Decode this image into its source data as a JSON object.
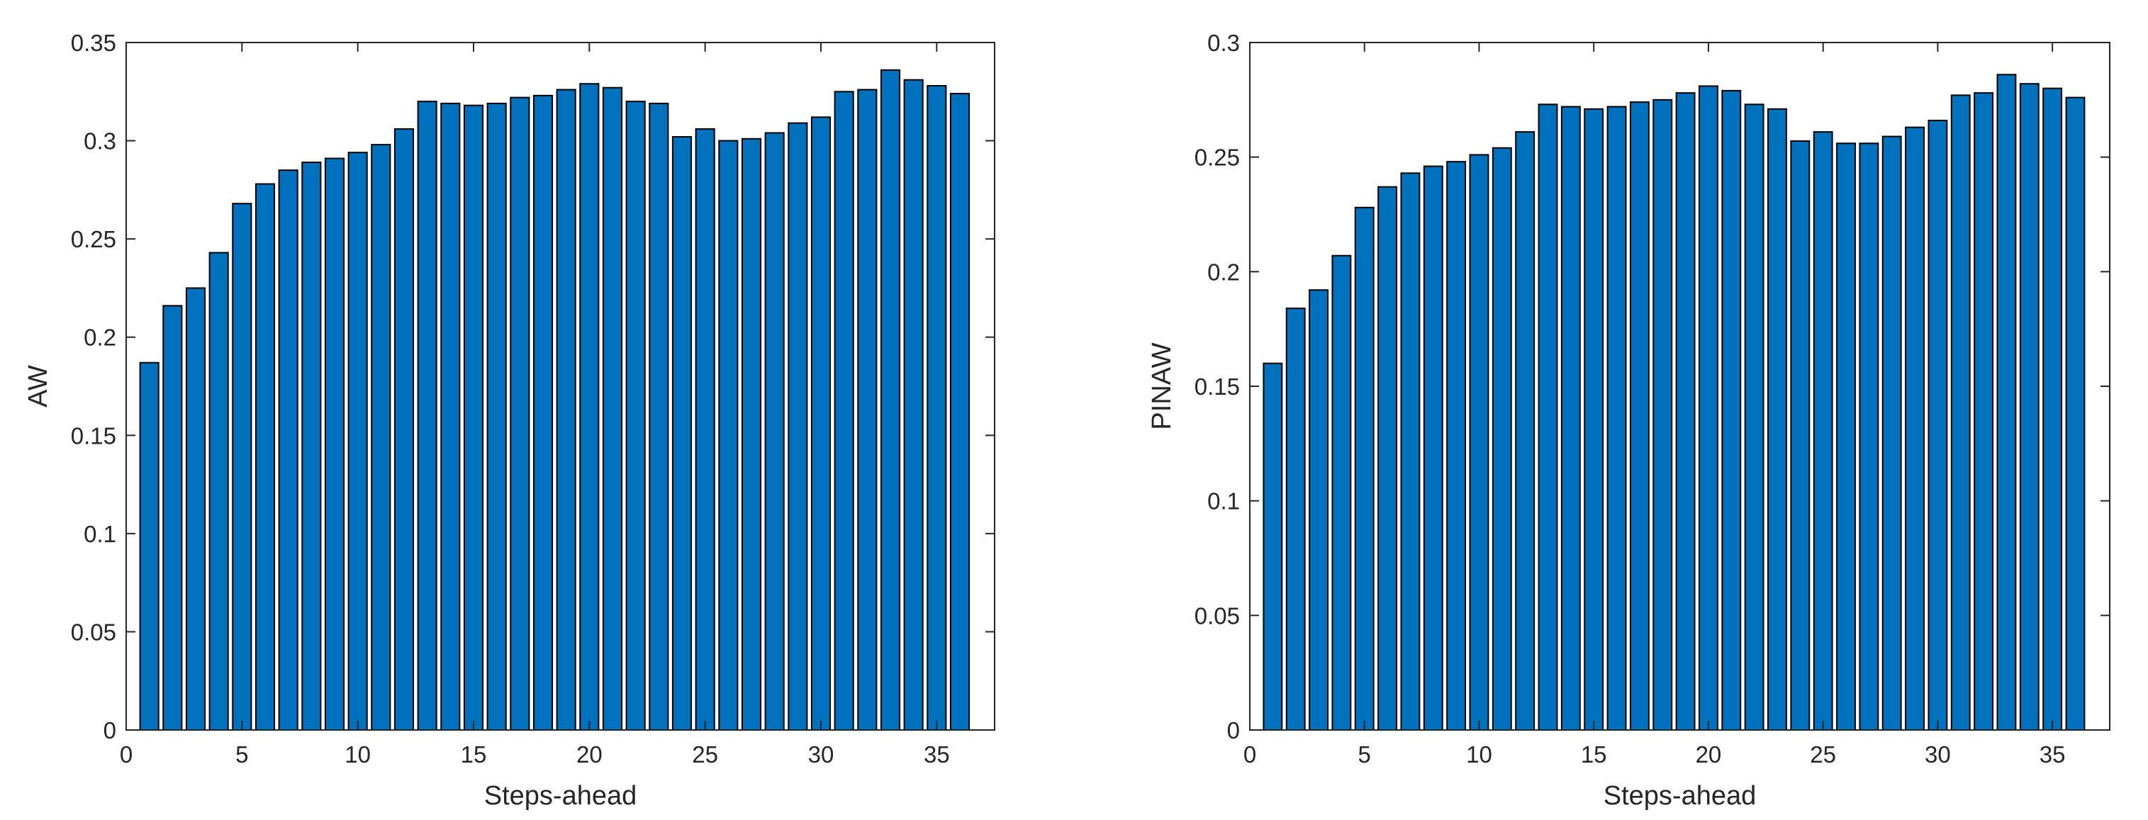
{
  "colors": {
    "bar_fill": "#0072BD",
    "bar_edge": "#000000",
    "axis": "#262626",
    "background": "#ffffff"
  },
  "chart_data": [
    {
      "type": "bar",
      "title": "",
      "xlabel": "Steps-ahead",
      "ylabel": "AW",
      "xlim": [
        0,
        37.5
      ],
      "ylim": [
        0,
        0.35
      ],
      "xticks": [
        0,
        5,
        10,
        15,
        20,
        25,
        30,
        35
      ],
      "xtick_labels": [
        "0",
        "5",
        "10",
        "15",
        "20",
        "25",
        "30",
        "35"
      ],
      "yticks": [
        0,
        0.05,
        0.1,
        0.15,
        0.2,
        0.25,
        0.3,
        0.35
      ],
      "ytick_labels": [
        "0",
        "0.05",
        "0.1",
        "0.15",
        "0.2",
        "0.25",
        "0.3",
        "0.35"
      ],
      "grid": false,
      "x": [
        1,
        2,
        3,
        4,
        5,
        6,
        7,
        8,
        9,
        10,
        11,
        12,
        13,
        14,
        15,
        16,
        17,
        18,
        19,
        20,
        21,
        22,
        23,
        24,
        25,
        26,
        27,
        28,
        29,
        30,
        31,
        32,
        33,
        34,
        35,
        36
      ],
      "values": [
        0.187,
        0.216,
        0.225,
        0.243,
        0.268,
        0.278,
        0.285,
        0.289,
        0.291,
        0.294,
        0.298,
        0.306,
        0.32,
        0.319,
        0.318,
        0.319,
        0.322,
        0.323,
        0.326,
        0.329,
        0.327,
        0.32,
        0.319,
        0.302,
        0.306,
        0.3,
        0.301,
        0.304,
        0.309,
        0.312,
        0.325,
        0.326,
        0.336,
        0.331,
        0.328,
        0.324
      ]
    },
    {
      "type": "bar",
      "title": "",
      "xlabel": "Steps-ahead",
      "ylabel": "PINAW",
      "xlim": [
        0,
        37.5
      ],
      "ylim": [
        0,
        0.3
      ],
      "xticks": [
        0,
        5,
        10,
        15,
        20,
        25,
        30,
        35
      ],
      "xtick_labels": [
        "0",
        "5",
        "10",
        "15",
        "20",
        "25",
        "30",
        "35"
      ],
      "yticks": [
        0,
        0.05,
        0.1,
        0.15,
        0.2,
        0.25,
        0.3
      ],
      "ytick_labels": [
        "0",
        "0.05",
        "0.1",
        "0.15",
        "0.2",
        "0.25",
        "0.3"
      ],
      "grid": false,
      "x": [
        1,
        2,
        3,
        4,
        5,
        6,
        7,
        8,
        9,
        10,
        11,
        12,
        13,
        14,
        15,
        16,
        17,
        18,
        19,
        20,
        21,
        22,
        23,
        24,
        25,
        26,
        27,
        28,
        29,
        30,
        31,
        32,
        33,
        34,
        35,
        36
      ],
      "values": [
        0.16,
        0.184,
        0.192,
        0.207,
        0.228,
        0.237,
        0.243,
        0.246,
        0.248,
        0.251,
        0.254,
        0.261,
        0.273,
        0.272,
        0.271,
        0.272,
        0.274,
        0.275,
        0.278,
        0.281,
        0.279,
        0.273,
        0.271,
        0.257,
        0.261,
        0.256,
        0.256,
        0.259,
        0.263,
        0.266,
        0.277,
        0.278,
        0.286,
        0.282,
        0.28,
        0.276
      ]
    }
  ]
}
